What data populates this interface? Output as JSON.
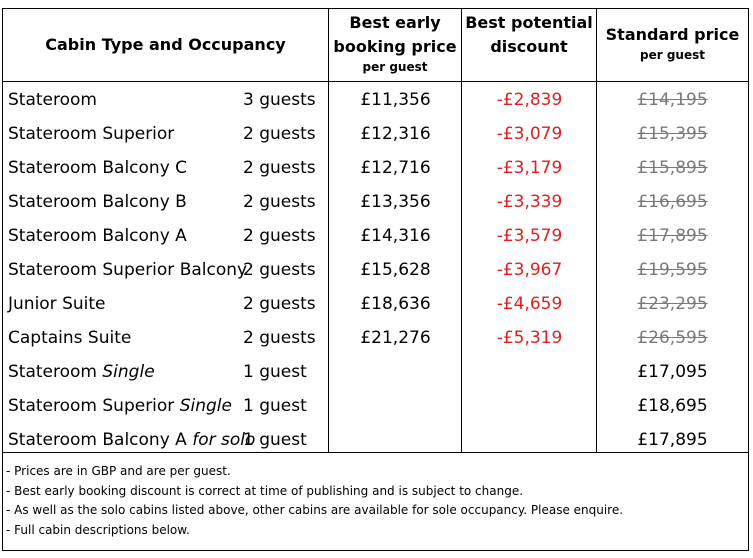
{
  "header": {
    "cabin": "Cabin Type and Occupancy",
    "early_line1": "Best early",
    "early_line2": "booking price",
    "early_sub": "per guest",
    "discount_line1": "Best potential",
    "discount_line2": "discount",
    "standard": "Standard price",
    "standard_sub": "per guest"
  },
  "rows": [
    {
      "type": "Stateroom",
      "type_italic": "",
      "occupancy": "3 guests",
      "early": "£11,356",
      "discount": "-£2,839",
      "standard": "£14,195",
      "standard_struck": true
    },
    {
      "type": "Stateroom Superior",
      "type_italic": "",
      "occupancy": "2 guests",
      "early": "£12,316",
      "discount": "-£3,079",
      "standard": "£15,395",
      "standard_struck": true
    },
    {
      "type": "Stateroom Balcony C",
      "type_italic": "",
      "occupancy": "2 guests",
      "early": "£12,716",
      "discount": "-£3,179",
      "standard": "£15,895",
      "standard_struck": true
    },
    {
      "type": "Stateroom Balcony B",
      "type_italic": "",
      "occupancy": "2 guests",
      "early": "£13,356",
      "discount": "-£3,339",
      "standard": "£16,695",
      "standard_struck": true
    },
    {
      "type": "Stateroom Balcony A",
      "type_italic": "",
      "occupancy": "2 guests",
      "early": "£14,316",
      "discount": "-£3,579",
      "standard": "£17,895",
      "standard_struck": true
    },
    {
      "type": "Stateroom Superior Balcony",
      "type_italic": "",
      "occupancy": "2 guests",
      "early": "£15,628",
      "discount": "-£3,967",
      "standard": "£19,595",
      "standard_struck": true
    },
    {
      "type": "Junior Suite",
      "type_italic": "",
      "occupancy": "2 guests",
      "early": "£18,636",
      "discount": "-£4,659",
      "standard": "£23,295",
      "standard_struck": true
    },
    {
      "type": "Captains Suite",
      "type_italic": "",
      "occupancy": "2 guests",
      "early": "£21,276",
      "discount": "-£5,319",
      "standard": "£26,595",
      "standard_struck": true
    },
    {
      "type": "Stateroom ",
      "type_italic": "Single",
      "occupancy": "1  guest",
      "early": "",
      "discount": "",
      "standard": "£17,095",
      "standard_struck": false
    },
    {
      "type": "Stateroom Superior ",
      "type_italic": "Single",
      "occupancy": "1  guest",
      "early": "",
      "discount": "",
      "standard": "£18,695",
      "standard_struck": false
    },
    {
      "type": "Stateroom Balcony A ",
      "type_italic": "for solo",
      "occupancy": "1  guest",
      "early": "",
      "discount": "",
      "standard": "£17,895",
      "standard_struck": false
    }
  ],
  "notes": [
    "- Prices are in GBP and are per guest.",
    "- Best early booking discount is correct at time of publishing and is subject to change.",
    "- As well as the solo cabins listed above, other cabins are available for sole occupancy. Please enquire.",
    "- Full cabin descriptions below."
  ],
  "colors": {
    "discount": "#e02020",
    "struck_price": "#7a7a7a"
  }
}
